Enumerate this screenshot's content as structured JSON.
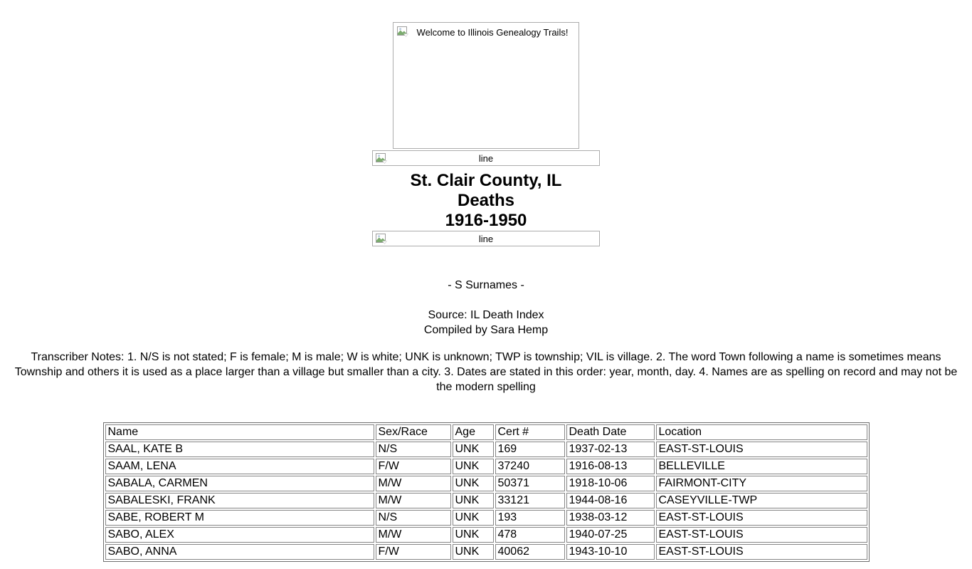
{
  "banner": {
    "alt": "Welcome to Illinois Genealogy Trails!"
  },
  "divider": {
    "alt": "line"
  },
  "header": {
    "title_line1": "St. Clair County, IL",
    "title_line2": "Deaths",
    "title_line3": "1916-1950"
  },
  "section": {
    "surnames_heading": "- S Surnames -",
    "source": "Source: IL Death Index",
    "compiled": "Compiled by Sara Hemp"
  },
  "notes": {
    "text": "Transcriber Notes: 1. N/S is not stated; F is female; M is male; W is white; UNK is unknown; TWP is township; VIL is village. 2. The word Town following a name is sometimes means Township and others it is used as a place larger than a village but smaller than a city. 3. Dates are stated in this order: year, month, day.  4. Names are as spelling on record and may not be the modern spelling"
  },
  "table": {
    "headers": [
      "Name",
      "Sex/Race",
      "Age",
      "Cert #",
      "Death Date",
      "Location"
    ],
    "rows": [
      [
        "SAAL, KATE B",
        "N/S",
        "UNK",
        "169",
        "1937-02-13",
        "EAST-ST-LOUIS"
      ],
      [
        "SAAM, LENA",
        "F/W",
        "UNK",
        "37240",
        "1916-08-13",
        "BELLEVILLE"
      ],
      [
        "SABALA, CARMEN",
        "M/W",
        "UNK",
        "50371",
        "1918-10-06",
        "FAIRMONT-CITY"
      ],
      [
        "SABALESKI, FRANK",
        "M/W",
        "UNK",
        "33121",
        "1944-08-16",
        "CASEYVILLE-TWP"
      ],
      [
        "SABE, ROBERT M",
        "N/S",
        "UNK",
        "193",
        "1938-03-12",
        "EAST-ST-LOUIS"
      ],
      [
        "SABO, ALEX",
        "M/W",
        "UNK",
        "478",
        "1940-07-25",
        "EAST-ST-LOUIS"
      ],
      [
        "SABO, ANNA",
        "F/W",
        "UNK",
        "40062",
        "1943-10-10",
        "EAST-ST-LOUIS"
      ]
    ]
  },
  "colors": {
    "text": "#000000",
    "background": "#ffffff",
    "box_border": "#acacac",
    "table_border": "#858585"
  }
}
